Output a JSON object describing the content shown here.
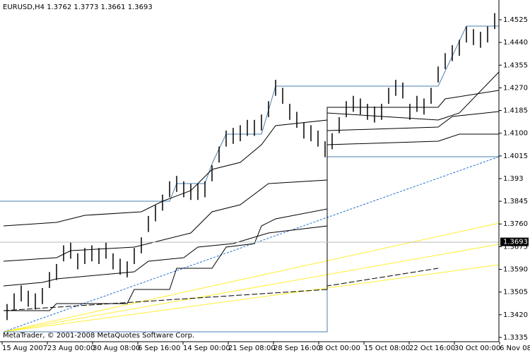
{
  "chart_data": {
    "type": "ohlc",
    "title": "EURUSD,H4  1.3762 1.3773 1.3661 1.3693",
    "copyright": "MetaTrader, © 2001-2008 MetaQuotes Software Corp.",
    "x_labels": [
      "15 Aug 2007",
      "23 Aug 00:00",
      "30 Aug 08:00",
      "6 Sep 16:00",
      "14 Sep 00:00",
      "21 Sep 08:00",
      "28 Sep 16:00",
      "8 Oct 00:00",
      "15 Oct 08:00",
      "22 Oct 16:00",
      "30 Oct 00:00",
      "6 Nov 08:00"
    ],
    "high": [
      1.346,
      1.35,
      1.353,
      1.351,
      1.35,
      1.352,
      1.358,
      1.361,
      1.368,
      1.369,
      1.365,
      1.367,
      1.368,
      1.367,
      1.369,
      1.365,
      1.363,
      1.362,
      1.367,
      1.371,
      1.379,
      1.383,
      1.387,
      1.392,
      1.394,
      1.392,
      1.391,
      1.391,
      1.392,
      1.398,
      1.405,
      1.411,
      1.412,
      1.413,
      1.415,
      1.415,
      1.417,
      1.422,
      1.43,
      1.427,
      1.421,
      1.418,
      1.414,
      1.413,
      1.411,
      1.407,
      1.41,
      1.416,
      1.422,
      1.424,
      1.423,
      1.421,
      1.42,
      1.421,
      1.427,
      1.43,
      1.429,
      1.421,
      1.424,
      1.423,
      1.427,
      1.435,
      1.44,
      1.443,
      1.445,
      1.45,
      1.449,
      1.448,
      1.45,
      1.455
    ],
    "low": [
      1.34,
      1.344,
      1.347,
      1.345,
      1.344,
      1.346,
      1.352,
      1.355,
      1.362,
      1.363,
      1.359,
      1.361,
      1.362,
      1.361,
      1.363,
      1.359,
      1.357,
      1.356,
      1.361,
      1.365,
      1.373,
      1.377,
      1.381,
      1.386,
      1.388,
      1.386,
      1.385,
      1.385,
      1.386,
      1.392,
      1.399,
      1.405,
      1.406,
      1.407,
      1.409,
      1.409,
      1.411,
      1.416,
      1.424,
      1.421,
      1.415,
      1.412,
      1.408,
      1.407,
      1.405,
      1.401,
      1.404,
      1.41,
      1.416,
      1.418,
      1.417,
      1.415,
      1.414,
      1.415,
      1.421,
      1.424,
      1.423,
      1.415,
      1.418,
      1.417,
      1.421,
      1.429,
      1.434,
      1.437,
      1.439,
      1.444,
      1.443,
      1.442,
      1.444,
      1.449
    ],
    "color": "#000000",
    "current_price": 1.3693,
    "ylim": [
      1.3319,
      1.4599
    ],
    "yticks": [
      1.3335,
      {
        "value": 1.342,
        "label": "1.3420"
      },
      1.3505,
      {
        "value": 1.359,
        "label": "1.3590"
      },
      1.3675,
      {
        "value": 1.376,
        "label": "1.3760"
      },
      1.3845,
      1.393,
      1.4015,
      {
        "value": 1.41,
        "label": "1.4100"
      },
      1.4185,
      {
        "value": 1.427,
        "label": "1.4270"
      },
      1.4355,
      {
        "value": 1.444,
        "label": "1.4440"
      },
      1.4525
    ]
  }
}
